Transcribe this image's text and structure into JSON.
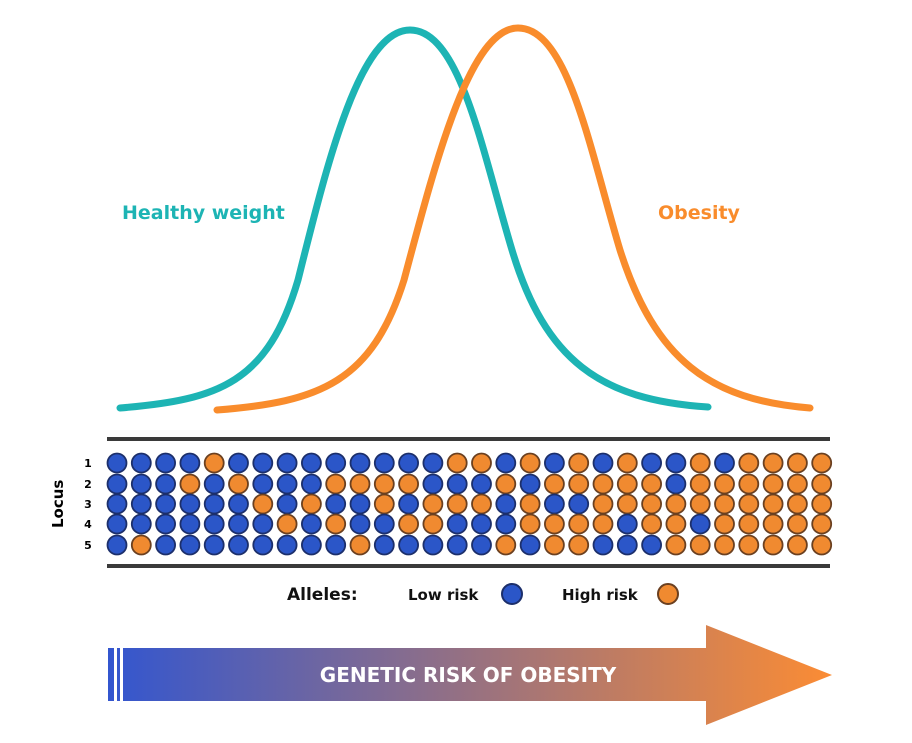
{
  "labels": {
    "healthy": "Healthy weight",
    "obesity": "Obesity",
    "locus": "Locus",
    "alleles": "Alleles:",
    "low_risk": "Low risk",
    "high_risk": "High risk",
    "arrow": "GENETIC RISK OF OBESITY"
  },
  "loci": [
    "1",
    "2",
    "3",
    "4",
    "5"
  ],
  "colors": {
    "healthy": "#1db4b4",
    "obesity": "#f98c2c",
    "low_risk": "#2b56c8",
    "high_risk": "#f08a30",
    "arrow_start": "#3356cf",
    "arrow_end": "#fb8c34"
  },
  "alleles_grid": [
    "LLLLHLLLLLLLLLHHLHLHLHLLHLHHHH",
    "LLLHLHLLLHHHHLLLHLHHHHHLHHHHHH",
    "LLLLLLHLHLLHLHHHLHLLHHHHHHHHHH",
    "LLLLLLLHLHLLHHLLLHHHHLHHLHHHHH",
    "LHLLLLLLLLHLLLLLHLHHLLLHHHHHHH"
  ]
}
